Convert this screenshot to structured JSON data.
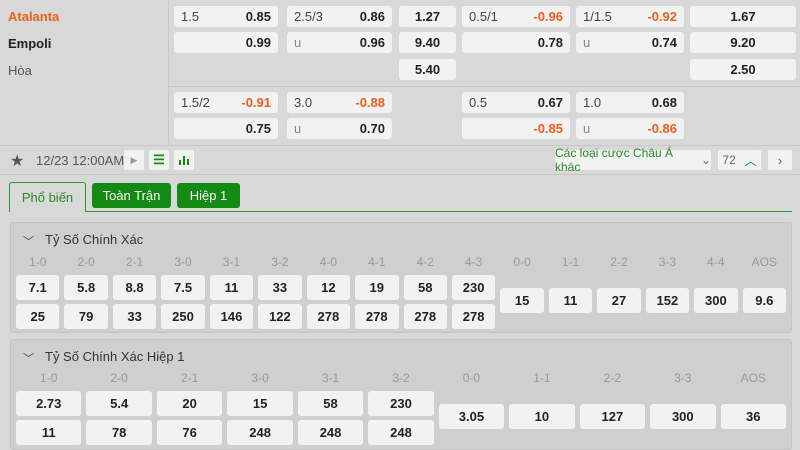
{
  "match": {
    "home": "Atalanta",
    "away": "Empoli",
    "draw": "Hòa",
    "time": "12/23 12:00AM"
  },
  "colors": {
    "accent_green": "#138a13",
    "negative": "#e8601c",
    "home_team": "#e8601c"
  },
  "odds_block1": {
    "hdp_ft": {
      "line": "1.5",
      "home": "0.85",
      "away": "0.99"
    },
    "ou_ft": {
      "line": "2.5/3",
      "over": "0.86",
      "under_label": "u",
      "under": "0.96"
    },
    "x12_ft": {
      "home": "1.27",
      "away": "9.40",
      "draw": "5.40"
    },
    "hdp_h1": {
      "line": "0.5/1",
      "home": "-0.96",
      "away": "0.78"
    },
    "ou_h1": {
      "line": "1/1.5",
      "over": "-0.92",
      "under_label": "u",
      "under": "0.74"
    },
    "x12_h1": {
      "home": "1.67",
      "away": "9.20",
      "draw": "2.50"
    }
  },
  "odds_block2": {
    "hdp_ft": {
      "line": "1.5/2",
      "home": "-0.91",
      "away": "0.75"
    },
    "ou_ft": {
      "line": "3.0",
      "over": "-0.88",
      "under_label": "u",
      "under": "0.70"
    },
    "hdp_h1": {
      "line": "0.5",
      "home": "0.67",
      "away": "-0.85"
    },
    "ou_h1": {
      "line": "1.0",
      "over": "0.68",
      "under_label": "u",
      "under": "-0.86"
    }
  },
  "toolbar": {
    "other_bets": "Các loại cược Châu Á khác",
    "count": "72",
    "icons": [
      "star-icon",
      "play-icon",
      "scoreboard-icon",
      "stats-icon",
      "chevron-up-icon",
      "chevron-right-icon"
    ]
  },
  "tabs": [
    {
      "label": "Phổ biến",
      "active": true
    },
    {
      "label": "Toàn Trận"
    },
    {
      "label": "Hiệp 1"
    }
  ],
  "correct_score": {
    "title": "Tỷ Số Chính Xác",
    "pairs": [
      [
        "1-0",
        "7.1",
        "25"
      ],
      [
        "2-0",
        "5.8",
        "79"
      ],
      [
        "2-1",
        "8.8",
        "33"
      ],
      [
        "3-0",
        "7.5",
        "250"
      ],
      [
        "3-1",
        "11",
        "146"
      ],
      [
        "3-2",
        "33",
        "122"
      ],
      [
        "4-0",
        "12",
        "278"
      ],
      [
        "4-1",
        "19",
        "278"
      ],
      [
        "4-2",
        "58",
        "278"
      ],
      [
        "4-3",
        "230",
        "278"
      ]
    ],
    "singles": [
      [
        "0-0",
        "15"
      ],
      [
        "1-1",
        "11"
      ],
      [
        "2-2",
        "27"
      ],
      [
        "3-3",
        "152"
      ],
      [
        "4-4",
        "300"
      ],
      [
        "AOS",
        "9.6"
      ]
    ]
  },
  "correct_score_h1": {
    "title": "Tỷ Số Chính Xác Hiệp 1",
    "pairs": [
      [
        "1-0",
        "2.73",
        "11"
      ],
      [
        "2-0",
        "5.4",
        "78"
      ],
      [
        "2-1",
        "20",
        "76"
      ],
      [
        "3-0",
        "15",
        "248"
      ],
      [
        "3-1",
        "58",
        "248"
      ],
      [
        "3-2",
        "230",
        "248"
      ]
    ],
    "singles": [
      [
        "0-0",
        "3.05"
      ],
      [
        "1-1",
        "10"
      ],
      [
        "2-2",
        "127"
      ],
      [
        "3-3",
        "300"
      ],
      [
        "AOS",
        "36"
      ]
    ]
  }
}
